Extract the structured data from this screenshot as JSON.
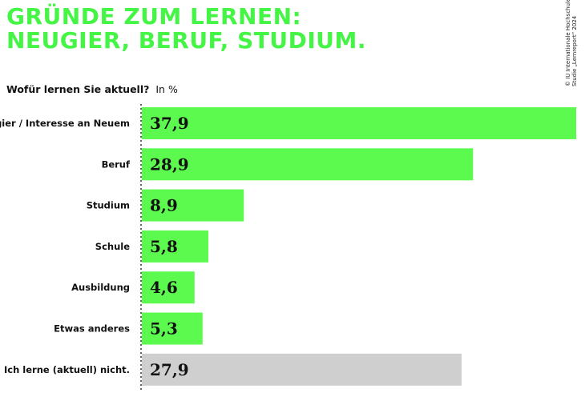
{
  "title_line1": "GRÜNDE ZUM LERNEN:",
  "title_line2": "NEUGIER, BERUF, STUDIUM.",
  "question": "Wofür lernen Sie aktuell?",
  "unit": "In %",
  "credit_line1": "© IU Internationale Hochschule,",
  "credit_line2": "Studie „Lernreport“ 2024",
  "colors": {
    "bar": "#5cfa4f",
    "bar_muted": "#cfcfcf",
    "title": "#45f545"
  },
  "chart_data": {
    "type": "bar",
    "orientation": "horizontal",
    "categories": [
      "Neugier / Interesse an Neuem",
      "Beruf",
      "Studium",
      "Schule",
      "Ausbildung",
      "Etwas anderes",
      "Ich lerne (aktuell) nicht."
    ],
    "values": [
      37.9,
      28.9,
      8.9,
      5.8,
      4.6,
      5.3,
      27.9
    ],
    "value_labels": [
      "37,9",
      "28,9",
      "8,9",
      "5,8",
      "4,6",
      "5,3",
      "27,9"
    ],
    "muted": [
      false,
      false,
      false,
      false,
      false,
      false,
      true
    ],
    "xlim": [
      0,
      37.9
    ],
    "grid": false,
    "legend": "none"
  }
}
